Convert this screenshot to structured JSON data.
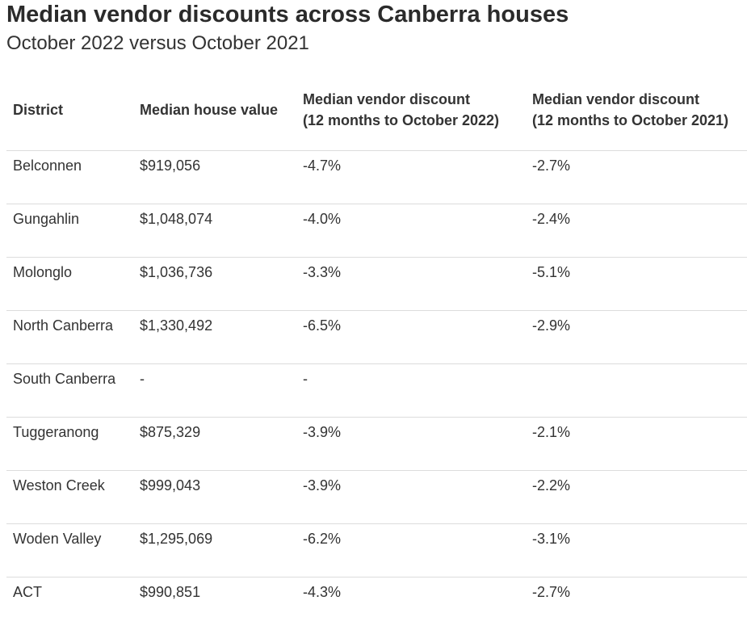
{
  "title": "Median vendor discounts across Canberra houses",
  "subtitle": "October 2022 versus October 2021",
  "chart_data": {
    "type": "table",
    "columns": [
      {
        "lines": [
          "District"
        ]
      },
      {
        "lines": [
          "Median house value"
        ]
      },
      {
        "lines": [
          "Median vendor discount",
          "(12 months to October 2022)"
        ]
      },
      {
        "lines": [
          "Median vendor discount",
          "(12 months to October 2021)"
        ]
      }
    ],
    "rows": [
      [
        "Belconnen",
        "$919,056",
        "-4.7%",
        "-2.7%"
      ],
      [
        "Gungahlin",
        "$1,048,074",
        "-4.0%",
        "-2.4%"
      ],
      [
        "Molonglo",
        "$1,036,736",
        "-3.3%",
        "-5.1%"
      ],
      [
        "North Canberra",
        "$1,330,492",
        "-6.5%",
        "-2.9%"
      ],
      [
        "South Canberra",
        "-",
        "-",
        ""
      ],
      [
        "Tuggeranong",
        "$875,329",
        "-3.9%",
        "-2.1%"
      ],
      [
        "Weston Creek",
        "$999,043",
        "-3.9%",
        "-2.2%"
      ],
      [
        "Woden Valley",
        "$1,295,069",
        "-6.2%",
        "-3.1%"
      ],
      [
        "ACT",
        "$990,851",
        "-4.3%",
        "-2.7%"
      ]
    ]
  }
}
